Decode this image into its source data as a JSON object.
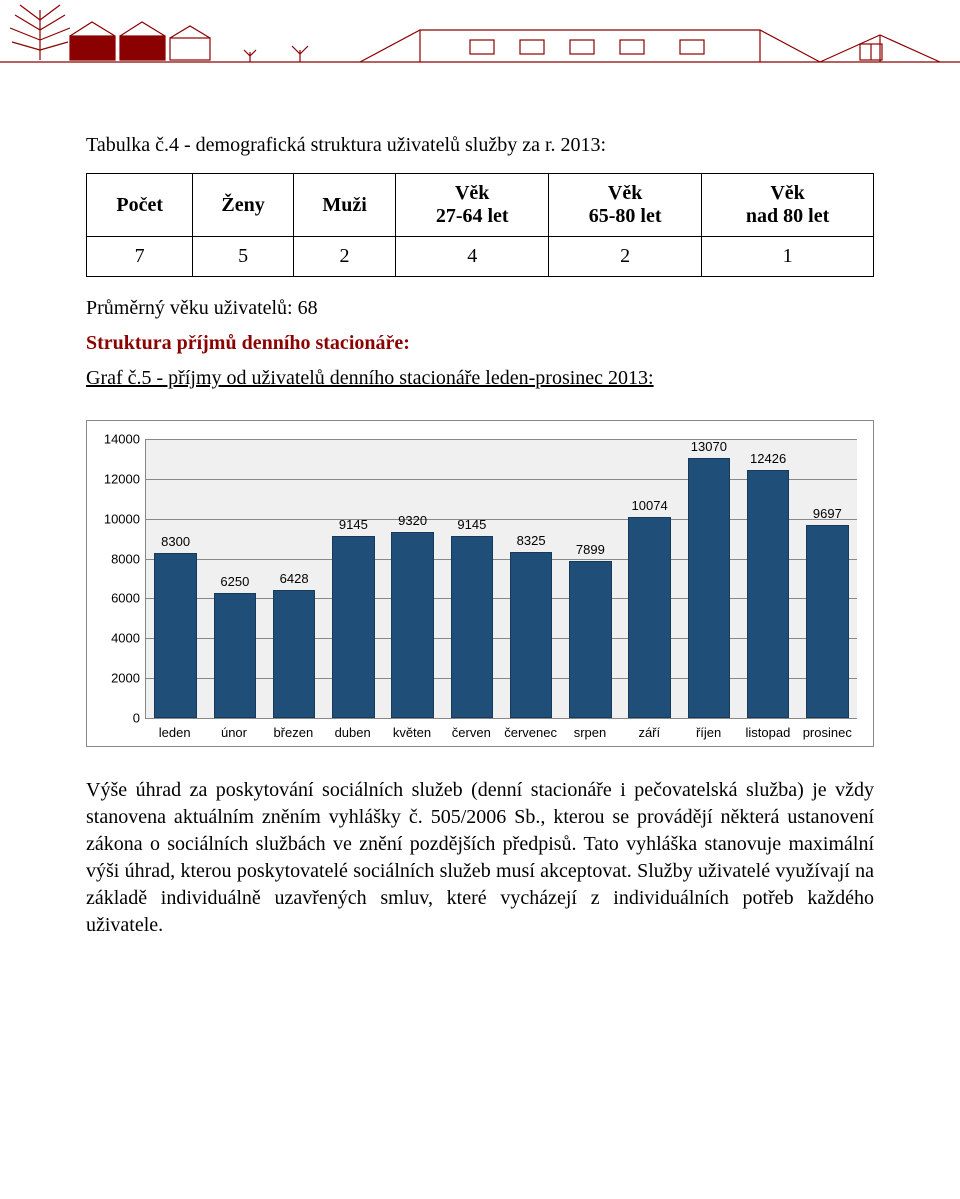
{
  "header_graphic": {
    "stroke_color": "#8b0000",
    "bg_color": "#ffffff"
  },
  "title": "Tabulka č.4 - demografická struktura uživatelů služby za r. 2013:",
  "table": {
    "headers": [
      "Počet",
      "Ženy",
      "Muži",
      "Věk\n27-64 let",
      "Věk\n65-80 let",
      "Věk\nnad 80 let"
    ],
    "row": [
      "7",
      "5",
      "2",
      "4",
      "2",
      "1"
    ]
  },
  "avg_line": "Průměrný věku uživatelů: 68",
  "structure_heading": "Struktura příjmů denního stacionáře:",
  "chart_heading": "Graf č.5 - příjmy od uživatelů denního stacionáře leden-prosinec 2013:",
  "chart": {
    "type": "bar",
    "categories": [
      "leden",
      "únor",
      "březen",
      "duben",
      "květen",
      "červen",
      "červenec",
      "srpen",
      "září",
      "říjen",
      "listopad",
      "prosinec"
    ],
    "values": [
      8300,
      6250,
      6428,
      9145,
      9320,
      9145,
      8325,
      7899,
      10074,
      13070,
      12426,
      9697
    ],
    "ymin": 0,
    "ymax": 14000,
    "ytick_step": 2000,
    "bar_color": "#1f4e79",
    "plot_bg": "#f0f0f0",
    "grid_color": "#888888",
    "value_fontsize": 13,
    "label_fontsize": 13
  },
  "paragraph": "Výše úhrad za poskytování sociálních služeb (denní stacionáře i pečovatelská služba) je vždy stanovena aktuálním zněním vyhlášky č. 505/2006 Sb., kterou se provádějí některá ustanovení zákona o sociálních službách ve znění pozdějších předpisů. Tato vyhláška stanovuje maximální výši úhrad, kterou poskytovatelé sociálních služeb musí akceptovat. Služby uživatelé využívají na základě individuálně uzavřených smluv, které vycházejí z individuálních potřeb každého uživatele."
}
